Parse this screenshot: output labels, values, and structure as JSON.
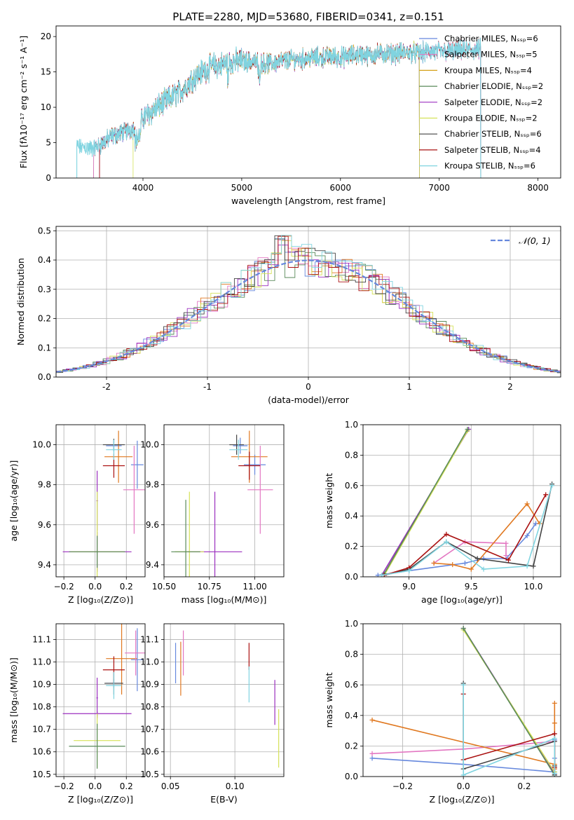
{
  "chart_data": [
    {
      "id": "spectrum",
      "type": "line",
      "title": "PLATE=2280, MJD=53680, FIBERID=0341, z=0.151",
      "xlabel": "wavelength [Angstrom, rest frame]",
      "ylabel": "Flux [fλ10⁻¹⁷ erg cm⁻² s⁻¹ A⁻¹]",
      "xlim": [
        3120,
        8230
      ],
      "ylim": [
        0,
        21.5
      ],
      "xticks": [
        4000,
        5000,
        6000,
        7000,
        8000
      ],
      "yticks": [
        0,
        5,
        10,
        15,
        20
      ],
      "grid": false,
      "legend_position": "top-right",
      "legend": [
        {
          "label": "Chabrier MILES, Nₛₛₚ=6",
          "color": "#6688dd"
        },
        {
          "label": "Salpeter MILES, Nₛₛₚ=5",
          "color": "#e377c2"
        },
        {
          "label": "Kroupa MILES, Nₛₛₚ=4",
          "color": "#d4a017"
        },
        {
          "label": "Chabrier ELODIE, Nₛₛₚ=2",
          "color": "#5a8a5a"
        },
        {
          "label": "Salpeter ELODIE, Nₛₛₚ=2",
          "color": "#9b2fbf"
        },
        {
          "label": "Kroupa ELODIE, Nₛₛₚ=2",
          "color": "#d4e157"
        },
        {
          "label": "Chabrier STELIB, Nₛₛₚ=6",
          "color": "#444444"
        },
        {
          "label": "Salpeter STELIB, Nₛₛₚ=4",
          "color": "#aa1111"
        },
        {
          "label": "Kroupa STELIB, Nₛₛₚ=6",
          "color": "#80d4e0"
        }
      ],
      "continuum": [
        [
          3330,
          4.5
        ],
        [
          3500,
          4.2
        ],
        [
          3600,
          5.0
        ],
        [
          3700,
          6.0
        ],
        [
          3800,
          6.5
        ],
        [
          3900,
          7.0
        ],
        [
          4000,
          8.5
        ],
        [
          4100,
          9.5
        ],
        [
          4200,
          10.5
        ],
        [
          4300,
          11.5
        ],
        [
          4400,
          12.5
        ],
        [
          4500,
          14.0
        ],
        [
          4600,
          15.0
        ],
        [
          4700,
          15.8
        ],
        [
          4800,
          16.0
        ],
        [
          4900,
          16.5
        ],
        [
          5000,
          16.5
        ],
        [
          5100,
          16.5
        ],
        [
          5200,
          16.2
        ],
        [
          5300,
          16.2
        ],
        [
          5400,
          16.5
        ],
        [
          5500,
          16.8
        ],
        [
          5600,
          16.8
        ],
        [
          5700,
          17.0
        ],
        [
          5800,
          17.0
        ],
        [
          5900,
          17.2
        ],
        [
          6000,
          17.0
        ],
        [
          6100,
          17.3
        ],
        [
          6200,
          17.5
        ],
        [
          6300,
          17.3
        ],
        [
          6400,
          17.6
        ],
        [
          6500,
          17.6
        ],
        [
          6600,
          17.6
        ],
        [
          6700,
          17.8
        ],
        [
          6800,
          17.6
        ],
        [
          6900,
          17.9
        ],
        [
          7000,
          17.8
        ],
        [
          7100,
          17.9
        ],
        [
          7200,
          18.0
        ],
        [
          7300,
          18.1
        ],
        [
          7420,
          18.2
        ]
      ]
    },
    {
      "id": "residuals",
      "type": "histogram",
      "xlabel": "(data-model)/error",
      "ylabel": "Normed distribution",
      "xlim": [
        -2.5,
        2.5
      ],
      "ylim": [
        0,
        0.515
      ],
      "xticks": [
        -2,
        -1,
        0,
        1,
        2
      ],
      "yticks": [
        0.0,
        0.1,
        0.2,
        0.3,
        0.4,
        0.5
      ],
      "grid": true,
      "legend_position": "top-right",
      "legend": [
        {
          "label": "𝒩(0, 1)",
          "color": "#6688dd"
        }
      ],
      "bin_width": 0.1
    },
    {
      "id": "z_age",
      "type": "errorbar",
      "xlabel": "Z [log₁₀(Z/Z⊙)]",
      "ylabel": "age  [log₁₀(age/yr)]",
      "xlim": [
        -0.25,
        0.32
      ],
      "ylim": [
        9.34,
        10.1
      ],
      "xticks": [
        -0.2,
        0.0,
        0.2
      ],
      "xtick_labels": [
        "−0.2",
        "0.0",
        "0.2"
      ],
      "yticks": [
        9.4,
        9.6,
        9.8,
        10.0
      ],
      "yticklabels": [
        "9.4",
        "9.6",
        "9.8",
        "10.0"
      ],
      "grid": true,
      "points": [
        {
          "x": 0.12,
          "xerr": 0.05,
          "y": 9.995,
          "yerr": 0.03,
          "color": "#6688dd"
        },
        {
          "x": 0.27,
          "xerr": 0.04,
          "y": 9.9,
          "yerr": 0.12,
          "color": "#6688dd"
        },
        {
          "x": 0.15,
          "xerr": 0.09,
          "y": 9.94,
          "yerr": 0.13,
          "color": "#e07820"
        },
        {
          "x": 0.25,
          "xerr": 0.07,
          "y": 9.775,
          "yerr": 0.22,
          "color": "#e377c2"
        },
        {
          "x": 0.013,
          "xerr": 0.005,
          "y": 9.72,
          "yerr": 0.15,
          "color": "#9b2fbf"
        },
        {
          "x": 0.013,
          "xerr": 0.22,
          "y": 9.465,
          "yerr": 0.1,
          "color": "#9b2fbf"
        },
        {
          "x": 0.013,
          "xerr": 0.17,
          "y": 9.465,
          "yerr": 0.3,
          "color": "#d4e157"
        },
        {
          "x": 0.013,
          "xerr": 0.18,
          "y": 9.465,
          "yerr": 0.08,
          "color": "#5a8a5a"
        },
        {
          "x": 0.12,
          "xerr": 0.07,
          "y": 10.0,
          "yerr": 0.03,
          "color": "#444444"
        },
        {
          "x": 0.12,
          "xerr": 0.07,
          "y": 9.895,
          "yerr": 0.06,
          "color": "#aa1111"
        },
        {
          "x": 0.12,
          "xerr": 0.05,
          "y": 9.975,
          "yerr": 0.05,
          "color": "#80d4e0"
        }
      ]
    },
    {
      "id": "mass_age",
      "type": "errorbar",
      "xlabel": "mass [log₁₀(M/M⊙)]",
      "ylabel": "",
      "xlim": [
        10.5,
        11.16
      ],
      "ylim": [
        9.34,
        10.1
      ],
      "xticks": [
        10.5,
        10.75,
        11.0
      ],
      "xtick_labels": [
        "10.50",
        "10.75",
        "11.00"
      ],
      "yticks": [
        9.4,
        9.6,
        9.8,
        10.0
      ],
      "yticklabels": [
        "9.4",
        "9.6",
        "9.8",
        "10.0"
      ],
      "grid": true,
      "points": [
        {
          "x": 10.92,
          "xerr": 0.04,
          "y": 9.995,
          "yerr": 0.04,
          "color": "#6688dd"
        },
        {
          "x": 11.0,
          "xerr": 0.06,
          "y": 9.9,
          "yerr": 0.05,
          "color": "#6688dd"
        },
        {
          "x": 10.97,
          "xerr": 0.1,
          "y": 9.94,
          "yerr": 0.13,
          "color": "#e07820"
        },
        {
          "x": 11.03,
          "xerr": 0.07,
          "y": 9.775,
          "yerr": 0.22,
          "color": "#e377c2"
        },
        {
          "x": 10.78,
          "xerr": 0.15,
          "y": 9.465,
          "yerr": 0.3,
          "color": "#9b2fbf"
        },
        {
          "x": 10.64,
          "xerr": 0.08,
          "y": 9.465,
          "yerr": 0.3,
          "color": "#d4e157"
        },
        {
          "x": 10.62,
          "xerr": 0.08,
          "y": 9.465,
          "yerr": 0.26,
          "color": "#5a8a5a"
        },
        {
          "x": 10.9,
          "xerr": 0.04,
          "y": 10.0,
          "yerr": 0.05,
          "color": "#444444"
        },
        {
          "x": 10.97,
          "xerr": 0.06,
          "y": 9.895,
          "yerr": 0.07,
          "color": "#aa1111"
        },
        {
          "x": 10.91,
          "xerr": 0.05,
          "y": 9.975,
          "yerr": 0.05,
          "color": "#80d4e0"
        }
      ]
    },
    {
      "id": "age_weight",
      "type": "line",
      "xlabel": "age  [log₁₀(age/yr)]",
      "ylabel": "mass weight",
      "xlim": [
        8.63,
        10.22
      ],
      "ylim": [
        0,
        1.0
      ],
      "xticks": [
        9.0,
        9.5,
        10.0
      ],
      "xtick_labels": [
        "9.0",
        "9.5",
        "10.0"
      ],
      "yticks": [
        0.0,
        0.2,
        0.4,
        0.6,
        0.8,
        1.0
      ],
      "yticklabels": [
        "0.0",
        "0.2",
        "0.4",
        "0.6",
        "0.8",
        "1.0"
      ],
      "grid": true,
      "series": [
        {
          "color": "#6688dd",
          "points": [
            [
              8.75,
              0.01
            ],
            [
              9.0,
              0.04
            ],
            [
              9.45,
              0.09
            ],
            [
              9.6,
              0.12
            ],
            [
              9.78,
              0.12
            ],
            [
              9.95,
              0.27
            ],
            [
              10.02,
              0.35
            ]
          ]
        },
        {
          "color": "#e377c2",
          "points": [
            [
              9.2,
              0.09
            ],
            [
              9.45,
              0.23
            ],
            [
              9.78,
              0.22
            ],
            [
              9.78,
              0.14
            ]
          ]
        },
        {
          "color": "#e07820",
          "points": [
            [
              9.2,
              0.09
            ],
            [
              9.35,
              0.08
            ],
            [
              9.5,
              0.05
            ],
            [
              9.95,
              0.48
            ],
            [
              10.05,
              0.35
            ]
          ]
        },
        {
          "color": "#9b2fbf",
          "points": [
            [
              8.78,
              0.01
            ],
            [
              9.48,
              0.97
            ]
          ]
        },
        {
          "color": "#d4e157",
          "points": [
            [
              8.8,
              0.01
            ],
            [
              9.47,
              0.96
            ]
          ]
        },
        {
          "color": "#5a8a5a",
          "points": [
            [
              8.8,
              0.02
            ],
            [
              9.47,
              0.97
            ]
          ]
        },
        {
          "color": "#444444",
          "points": [
            [
              8.8,
              0.01
            ],
            [
              9.0,
              0.05
            ],
            [
              9.3,
              0.23
            ],
            [
              9.55,
              0.12
            ],
            [
              10.0,
              0.07
            ],
            [
              10.15,
              0.61
            ]
          ]
        },
        {
          "color": "#aa1111",
          "points": [
            [
              8.8,
              0.01
            ],
            [
              9.0,
              0.06
            ],
            [
              9.3,
              0.28
            ],
            [
              9.8,
              0.11
            ],
            [
              10.1,
              0.54
            ]
          ]
        },
        {
          "color": "#80d4e0",
          "points": [
            [
              8.78,
              0.01
            ],
            [
              9.0,
              0.04
            ],
            [
              9.3,
              0.23
            ],
            [
              9.6,
              0.05
            ],
            [
              9.95,
              0.07
            ],
            [
              10.15,
              0.6
            ]
          ]
        }
      ]
    },
    {
      "id": "z_mass",
      "type": "errorbar",
      "xlabel": "Z [log₁₀(Z/Z⊙)]",
      "ylabel": "mass [log₁₀(M/M⊙)]",
      "xlim": [
        -0.25,
        0.32
      ],
      "ylim": [
        10.49,
        11.17
      ],
      "xticks": [
        -0.2,
        0.0,
        0.2
      ],
      "xtick_labels": [
        "−0.2",
        "0.0",
        "0.2"
      ],
      "yticks": [
        10.5,
        10.6,
        10.7,
        10.8,
        10.9,
        11.0,
        11.1
      ],
      "yticklabels": [
        "10.5",
        "10.6",
        "10.7",
        "10.8",
        "10.9",
        "11.0",
        "11.1"
      ],
      "grid": true,
      "points": [
        {
          "x": 0.12,
          "xerr": 0.05,
          "y": 10.905,
          "yerr": 0.02,
          "color": "#6688dd"
        },
        {
          "x": 0.27,
          "xerr": 0.04,
          "y": 11.01,
          "yerr": 0.14,
          "color": "#6688dd"
        },
        {
          "x": 0.17,
          "xerr": 0.1,
          "y": 11.015,
          "yerr": 0.16,
          "color": "#e07820"
        },
        {
          "x": 0.26,
          "xerr": 0.07,
          "y": 11.04,
          "yerr": 0.1,
          "color": "#e377c2"
        },
        {
          "x": 0.013,
          "xerr": 0.005,
          "y": 10.84,
          "yerr": 0.09,
          "color": "#9b2fbf"
        },
        {
          "x": 0.013,
          "xerr": 0.22,
          "y": 10.77,
          "yerr": 0.01,
          "color": "#9b2fbf"
        },
        {
          "x": 0.013,
          "xerr": 0.15,
          "y": 10.65,
          "yerr": 0.12,
          "color": "#d4e157"
        },
        {
          "x": 0.013,
          "xerr": 0.18,
          "y": 10.625,
          "yerr": 0.1,
          "color": "#5a8a5a"
        },
        {
          "x": 0.12,
          "xerr": 0.06,
          "y": 10.905,
          "yerr": 0.05,
          "color": "#444444"
        },
        {
          "x": 0.12,
          "xerr": 0.07,
          "y": 10.965,
          "yerr": 0.06,
          "color": "#aa1111"
        },
        {
          "x": 0.12,
          "xerr": 0.05,
          "y": 10.895,
          "yerr": 0.06,
          "color": "#80d4e0"
        }
      ]
    },
    {
      "id": "ebv_mass",
      "type": "errorbar",
      "xlabel": "E(B-V)",
      "ylabel": "",
      "xlim": [
        0.045,
        0.138
      ],
      "ylim": [
        10.49,
        11.17
      ],
      "xticks": [
        0.05,
        0.1
      ],
      "xtick_labels": [
        "0.05",
        "0.10"
      ],
      "yticks": [
        10.5,
        10.6,
        10.7,
        10.8,
        10.9,
        11.0,
        11.1
      ],
      "yticklabels": [
        "10.5",
        "10.6",
        "10.7",
        "10.8",
        "10.9",
        "11.0",
        "11.1"
      ],
      "grid": true,
      "points": [
        {
          "x": 0.054,
          "xerr": 0,
          "y": 10.995,
          "yerr": 0.09,
          "color": "#6688dd"
        },
        {
          "x": 0.058,
          "xerr": 0,
          "y": 10.97,
          "yerr": 0.12,
          "color": "#e07820"
        },
        {
          "x": 0.06,
          "xerr": 0,
          "y": 11.04,
          "yerr": 0.1,
          "color": "#e377c2"
        },
        {
          "x": 0.111,
          "xerr": 0,
          "y": 11.025,
          "yerr": 0.06,
          "color": "#aa1111"
        },
        {
          "x": 0.111,
          "xerr": 0,
          "y": 10.9,
          "yerr": 0.08,
          "color": "#80d4e0"
        },
        {
          "x": 0.131,
          "xerr": 0,
          "y": 10.82,
          "yerr": 0.1,
          "color": "#9b2fbf"
        },
        {
          "x": 0.134,
          "xerr": 0,
          "y": 10.66,
          "yerr": 0.13,
          "color": "#d4e157"
        }
      ]
    },
    {
      "id": "z_weight",
      "type": "line",
      "xlabel": "Z [log₁₀(Z/Z⊙)]",
      "ylabel": "mass weight",
      "xlim": [
        -0.33,
        0.32
      ],
      "ylim": [
        0,
        1.0
      ],
      "xticks": [
        -0.2,
        0.0,
        0.2
      ],
      "xtick_labels": [
        "−0.2",
        "0.0",
        "0.2"
      ],
      "yticks": [
        0.0,
        0.2,
        0.4,
        0.6,
        0.8,
        1.0
      ],
      "yticklabels": [
        "0.0",
        "0.2",
        "0.4",
        "0.6",
        "0.8",
        "1.0"
      ],
      "grid": true,
      "series": [
        {
          "color": "#6688dd",
          "points": [
            [
              -0.3,
              0.12
            ],
            [
              0.0,
              0.08
            ],
            [
              0.3,
              0.03
            ],
            [
              0.3,
              0.12
            ],
            [
              0.3,
              0.24
            ]
          ]
        },
        {
          "color": "#e377c2",
          "points": [
            [
              -0.3,
              0.15
            ],
            [
              0.0,
              0.18
            ],
            [
              0.3,
              0.23
            ],
            [
              0.3,
              0.05
            ],
            [
              0.3,
              0.01
            ]
          ]
        },
        {
          "color": "#e07820",
          "points": [
            [
              -0.3,
              0.37
            ],
            [
              0.3,
              0.08
            ],
            [
              0.3,
              0.48
            ],
            [
              0.3,
              0.35
            ],
            [
              0.3,
              0.05
            ]
          ]
        },
        {
          "color": "#9b2fbf",
          "points": [
            [
              0.0,
              0.97
            ],
            [
              0.3,
              0.02
            ]
          ]
        },
        {
          "color": "#d4e157",
          "points": [
            [
              0.0,
              0.96
            ],
            [
              0.3,
              0.03
            ]
          ]
        },
        {
          "color": "#5a8a5a",
          "points": [
            [
              0.0,
              0.97
            ],
            [
              0.3,
              0.01
            ]
          ]
        },
        {
          "color": "#444444",
          "points": [
            [
              0.0,
              0.61
            ],
            [
              0.0,
              0.05
            ],
            [
              0.3,
              0.23
            ],
            [
              0.3,
              0.07
            ],
            [
              0.3,
              0.01
            ]
          ]
        },
        {
          "color": "#aa1111",
          "points": [
            [
              0.0,
              0.54
            ],
            [
              0.0,
              0.11
            ],
            [
              0.3,
              0.28
            ],
            [
              0.3,
              0.06
            ]
          ]
        },
        {
          "color": "#80d4e0",
          "points": [
            [
              0.0,
              0.6
            ],
            [
              0.0,
              0.01
            ],
            [
              0.3,
              0.25
            ],
            [
              0.3,
              0.02
            ]
          ]
        }
      ]
    }
  ]
}
